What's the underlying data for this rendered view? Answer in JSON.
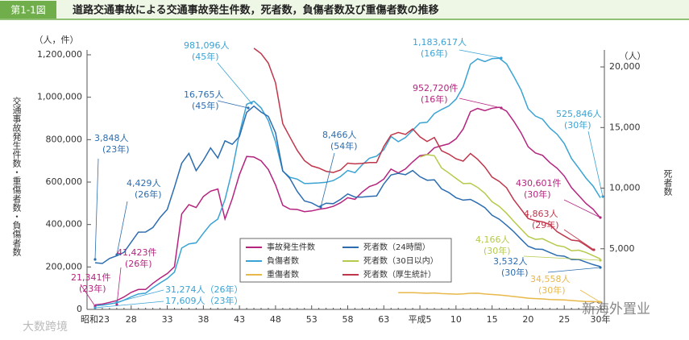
{
  "chart_data": {
    "type": "line",
    "badge": "第1-1図",
    "title": "道路交通事故による交通事故発生件数，死者数，負傷者数及び重傷者数の推移",
    "y_unit": "（人，件）",
    "y_label": "交通事故発生件数・重傷者数・負傷者数",
    "y2_unit": "（人）",
    "y2_label": "死者数",
    "categories": [
      "昭和23",
      null,
      null,
      null,
      null,
      "28",
      null,
      null,
      null,
      null,
      "33",
      null,
      null,
      null,
      null,
      "38",
      null,
      null,
      null,
      null,
      "43",
      null,
      null,
      null,
      null,
      "48",
      null,
      null,
      null,
      null,
      "53",
      null,
      null,
      null,
      null,
      "58",
      null,
      null,
      null,
      null,
      "63",
      null,
      null,
      null,
      null,
      "平成5",
      null,
      null,
      null,
      null,
      "10",
      null,
      null,
      null,
      null,
      "15",
      null,
      null,
      null,
      null,
      "20",
      null,
      null,
      null,
      null,
      "25",
      null,
      null,
      null,
      null,
      "30年"
    ],
    "ylim": [
      0,
      1200000
    ],
    "yticks": [
      0,
      {
        "value": 200000,
        "label": "200,000"
      },
      {
        "value": 400000,
        "label": "400,000"
      },
      {
        "value": 600000,
        "label": "600,000"
      },
      {
        "value": 800000,
        "label": "800,000"
      },
      {
        "value": 1000000,
        "label": "1,000,000"
      },
      {
        "value": 1200000,
        "label": "1,200,000"
      }
    ],
    "y2lim": [
      0,
      21000
    ],
    "y2ticks": [
      {
        "value": 5000,
        "label": "5,000"
      },
      {
        "value": 10000,
        "label": "10,000"
      },
      {
        "value": 15000,
        "label": "15,000"
      },
      {
        "value": 20000,
        "label": "20,000"
      }
    ],
    "grid": false,
    "series": [
      {
        "name": "事故発生件数",
        "color": "#b5247f",
        "values": [
          21341,
          25113,
          33212,
          41423,
          58487,
          80019,
          93869,
          93981,
          122691,
          146833,
          168799,
          201292,
          449917,
          493693,
          479825,
          531966,
          557183,
          567286,
          425944,
          521481,
          635056,
          720880,
          718080,
          700290,
          659283,
          586713,
          490452,
          472938,
          471041,
          460649,
          464037,
          471573,
          476677,
          485578,
          502261,
          526362,
          518642,
          552788,
          579190,
          590723,
          614481,
          661363,
          643097,
          662392,
          695345,
          724675,
          729461,
          761794,
          771085,
          780401,
          803882,
          850371,
          931950,
          947253,
          936950,
          948281,
          952720,
          934346,
          887267,
          832704,
          766394,
          737637,
          725924,
          692084,
          665157,
          629033,
          573842,
          536899,
          499201,
          472165,
          430601
        ]
      },
      {
        "name": "負傷者数",
        "color": "#3aa3d4",
        "values": [
          17609,
          20242,
          25450,
          31274,
          43321,
          59280,
          72390,
          76501,
          102072,
          124530,
          145432,
          175951,
          289156,
          308697,
          313813,
          359089,
          401117,
          425666,
          517775,
          655377,
          828071,
          967000,
          981096,
          949689,
          889198,
          789948,
          651420,
          622467,
          613957,
          593211,
          594116,
          596282,
          598719,
          607346,
          626192,
          654822,
          644321,
          681346,
          712330,
          722179,
          752845,
          814832,
          790295,
          810245,
          844003,
          878633,
          881723,
          922677,
          942204,
          958925,
          990675,
          1050399,
          1155697,
          1181039,
          1167855,
          1181681,
          1183617,
          1157113,
          1098564,
          1034652,
          945703,
          911215,
          896297,
          854613,
          825392,
          781494,
          711374,
          666023,
          618853,
          580850,
          525846
        ]
      },
      {
        "name": "重傷者数",
        "color": "#e8b84a",
        "values": [
          null,
          null,
          null,
          null,
          null,
          null,
          null,
          null,
          null,
          null,
          null,
          null,
          null,
          null,
          null,
          null,
          null,
          null,
          null,
          null,
          null,
          null,
          null,
          null,
          null,
          null,
          null,
          null,
          null,
          null,
          null,
          null,
          null,
          null,
          null,
          null,
          null,
          null,
          null,
          null,
          null,
          null,
          78900,
          78500,
          78800,
          77500,
          76000,
          77500,
          74400,
          72900,
          71600,
          72800,
          75800,
          76200,
          72700,
          70100,
          68000,
          64500,
          60900,
          56800,
          52600,
          50800,
          49400,
          46600,
          45700,
          44600,
          41800,
          39400,
          37400,
          36900,
          34558
        ]
      },
      {
        "name": "死者数（24時間）",
        "color": "#2c6db0",
        "axis": "y2",
        "values": [
          3848,
          3790,
          4202,
          4429,
          4696,
          5544,
          6374,
          6379,
          6751,
          7575,
          8248,
          10079,
          12055,
          12865,
          11445,
          12301,
          13318,
          12484,
          13904,
          13618,
          14256,
          16257,
          16765,
          16278,
          15918,
          14574,
          11432,
          10792,
          9734,
          8945,
          8783,
          8466,
          8760,
          8719,
          9073,
          9520,
          9262,
          9261,
          9317,
          9347,
          10344,
          11086,
          11227,
          11109,
          11452,
          10945,
          10653,
          10684,
          9943,
          9642,
          9214,
          9012,
          9073,
          8757,
          8396,
          7768,
          7436,
          6937,
          6415,
          5796,
          5209,
          4979,
          4948,
          4691,
          4438,
          4388,
          4113,
          4117,
          3904,
          3694,
          3532
        ]
      },
      {
        "name": "死者数（30日以内）",
        "color": "#b7c94a",
        "axis": "y2",
        "values": [
          null,
          null,
          null,
          null,
          null,
          null,
          null,
          null,
          null,
          null,
          null,
          null,
          null,
          null,
          null,
          null,
          null,
          null,
          null,
          null,
          null,
          null,
          null,
          null,
          null,
          null,
          null,
          null,
          null,
          null,
          null,
          null,
          null,
          null,
          null,
          null,
          null,
          null,
          null,
          null,
          null,
          null,
          null,
          null,
          null,
          12566,
          12768,
          12670,
          11674,
          11254,
          10805,
          10372,
          10403,
          10060,
          9575,
          8877,
          8492,
          7931,
          7272,
          6639,
          6023,
          5772,
          5828,
          5535,
          5261,
          5165,
          4838,
          4885,
          4698,
          4431,
          4166
        ]
      },
      {
        "name": "死者数（厚生統計）",
        "color": "#c0364a",
        "axis": "y2",
        "values": [
          null,
          null,
          null,
          null,
          null,
          null,
          null,
          null,
          null,
          null,
          null,
          null,
          null,
          null,
          null,
          null,
          null,
          null,
          null,
          null,
          null,
          null,
          21535,
          21101,
          20312,
          18687,
          15311,
          14206,
          13117,
          12275,
          11839,
          11658,
          11388,
          11288,
          11500,
          12063,
          12002,
          12047,
          12112,
          12116,
          13447,
          14377,
          14595,
          14436,
          14886,
          14232,
          13852,
          14180,
          13086,
          12806,
          12421,
          12229,
          12857,
          12378,
          11743,
          10913,
          10551,
          10028,
          9048,
          8268,
          7499,
          7309,
          7222,
          7000,
          6414,
          6060,
          5717,
          5646,
          5278,
          4863,
          null
        ]
      }
    ],
    "annotations": [
      {
        "lines": [
          "3,848人",
          "(23年)"
        ]
      },
      {
        "lines": [
          "4,429人",
          "(26年)"
        ]
      },
      {
        "lines": [
          "21,341件",
          "(23年)"
        ]
      },
      {
        "lines": [
          "41,423件",
          "(26年)"
        ]
      },
      {
        "lines": [
          "31,274人（26年）"
        ]
      },
      {
        "lines": [
          "17,609人（23年）"
        ]
      },
      {
        "lines": [
          "981,096人",
          "(45年)"
        ]
      },
      {
        "lines": [
          "16,765人",
          "(45年)"
        ]
      },
      {
        "lines": [
          "8,466人",
          "(54年)"
        ]
      },
      {
        "lines": [
          "1,183,617人",
          "(16年)"
        ]
      },
      {
        "lines": [
          "952,720件",
          "(16年)"
        ]
      },
      {
        "lines": [
          "525,846人",
          "(30年)"
        ]
      },
      {
        "lines": [
          "430,601件",
          "(30年)"
        ]
      },
      {
        "lines": [
          "4,863人",
          "(29年)"
        ]
      },
      {
        "lines": [
          "4,166人",
          "(30年)"
        ]
      },
      {
        "lines": [
          "3,532人",
          "(30年)"
        ]
      },
      {
        "lines": [
          "34,558人",
          "(30年)"
        ]
      }
    ],
    "watermarks": [
      "新海外置业",
      "大数跨境"
    ]
  }
}
